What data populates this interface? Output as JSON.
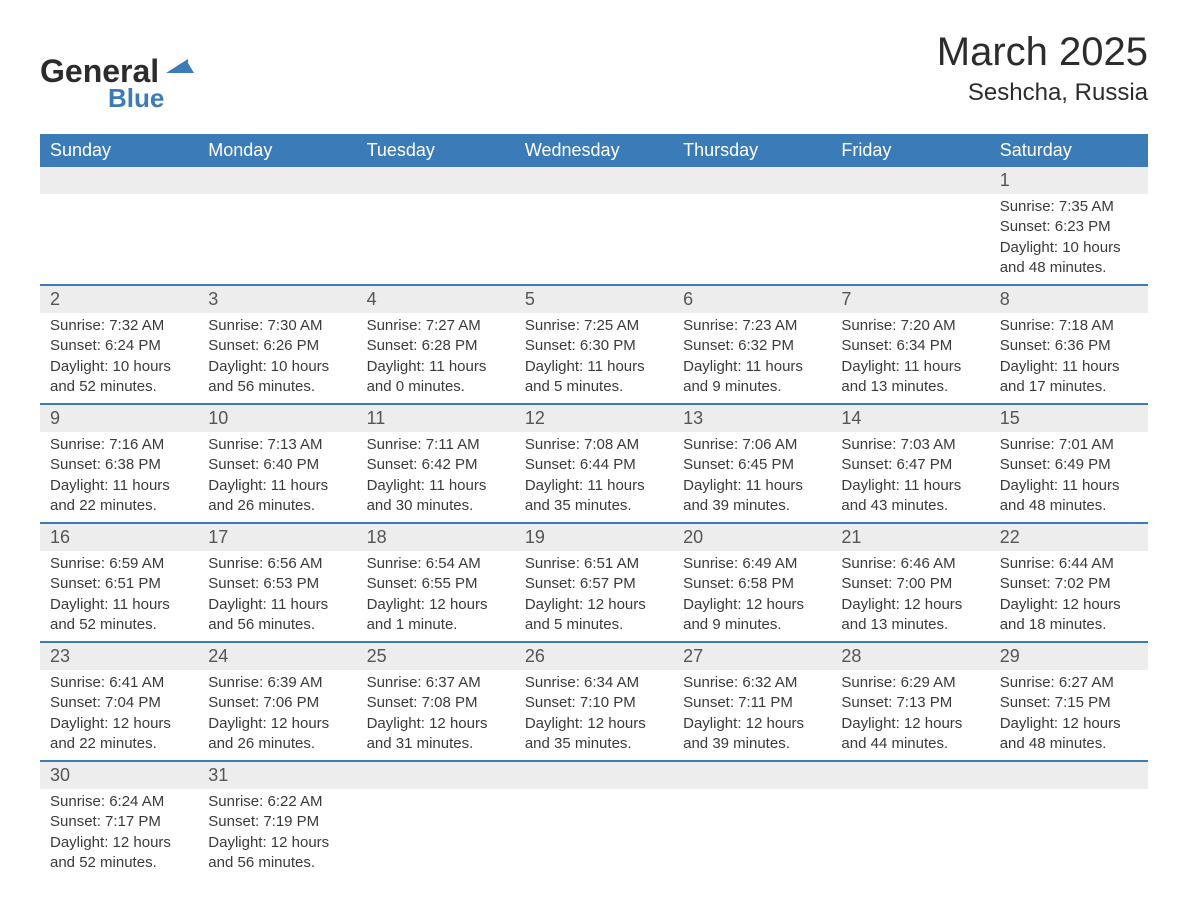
{
  "logo": {
    "text_general": "General",
    "text_blue": "Blue",
    "triangle_color": "#3b7cb8"
  },
  "title": {
    "month": "March 2025",
    "location": "Seshcha, Russia"
  },
  "colors": {
    "header_bg": "#3b7cb8",
    "header_text": "#ffffff",
    "daynum_bg": "#ededed",
    "daynum_text": "#555555",
    "content_text": "#3a3a3a",
    "border": "#3b7cb8",
    "background": "#ffffff"
  },
  "day_headers": [
    "Sunday",
    "Monday",
    "Tuesday",
    "Wednesday",
    "Thursday",
    "Friday",
    "Saturday"
  ],
  "weeks": [
    [
      null,
      null,
      null,
      null,
      null,
      null,
      {
        "num": "1",
        "sunrise": "Sunrise: 7:35 AM",
        "sunset": "Sunset: 6:23 PM",
        "daylight": "Daylight: 10 hours and 48 minutes."
      }
    ],
    [
      {
        "num": "2",
        "sunrise": "Sunrise: 7:32 AM",
        "sunset": "Sunset: 6:24 PM",
        "daylight": "Daylight: 10 hours and 52 minutes."
      },
      {
        "num": "3",
        "sunrise": "Sunrise: 7:30 AM",
        "sunset": "Sunset: 6:26 PM",
        "daylight": "Daylight: 10 hours and 56 minutes."
      },
      {
        "num": "4",
        "sunrise": "Sunrise: 7:27 AM",
        "sunset": "Sunset: 6:28 PM",
        "daylight": "Daylight: 11 hours and 0 minutes."
      },
      {
        "num": "5",
        "sunrise": "Sunrise: 7:25 AM",
        "sunset": "Sunset: 6:30 PM",
        "daylight": "Daylight: 11 hours and 5 minutes."
      },
      {
        "num": "6",
        "sunrise": "Sunrise: 7:23 AM",
        "sunset": "Sunset: 6:32 PM",
        "daylight": "Daylight: 11 hours and 9 minutes."
      },
      {
        "num": "7",
        "sunrise": "Sunrise: 7:20 AM",
        "sunset": "Sunset: 6:34 PM",
        "daylight": "Daylight: 11 hours and 13 minutes."
      },
      {
        "num": "8",
        "sunrise": "Sunrise: 7:18 AM",
        "sunset": "Sunset: 6:36 PM",
        "daylight": "Daylight: 11 hours and 17 minutes."
      }
    ],
    [
      {
        "num": "9",
        "sunrise": "Sunrise: 7:16 AM",
        "sunset": "Sunset: 6:38 PM",
        "daylight": "Daylight: 11 hours and 22 minutes."
      },
      {
        "num": "10",
        "sunrise": "Sunrise: 7:13 AM",
        "sunset": "Sunset: 6:40 PM",
        "daylight": "Daylight: 11 hours and 26 minutes."
      },
      {
        "num": "11",
        "sunrise": "Sunrise: 7:11 AM",
        "sunset": "Sunset: 6:42 PM",
        "daylight": "Daylight: 11 hours and 30 minutes."
      },
      {
        "num": "12",
        "sunrise": "Sunrise: 7:08 AM",
        "sunset": "Sunset: 6:44 PM",
        "daylight": "Daylight: 11 hours and 35 minutes."
      },
      {
        "num": "13",
        "sunrise": "Sunrise: 7:06 AM",
        "sunset": "Sunset: 6:45 PM",
        "daylight": "Daylight: 11 hours and 39 minutes."
      },
      {
        "num": "14",
        "sunrise": "Sunrise: 7:03 AM",
        "sunset": "Sunset: 6:47 PM",
        "daylight": "Daylight: 11 hours and 43 minutes."
      },
      {
        "num": "15",
        "sunrise": "Sunrise: 7:01 AM",
        "sunset": "Sunset: 6:49 PM",
        "daylight": "Daylight: 11 hours and 48 minutes."
      }
    ],
    [
      {
        "num": "16",
        "sunrise": "Sunrise: 6:59 AM",
        "sunset": "Sunset: 6:51 PM",
        "daylight": "Daylight: 11 hours and 52 minutes."
      },
      {
        "num": "17",
        "sunrise": "Sunrise: 6:56 AM",
        "sunset": "Sunset: 6:53 PM",
        "daylight": "Daylight: 11 hours and 56 minutes."
      },
      {
        "num": "18",
        "sunrise": "Sunrise: 6:54 AM",
        "sunset": "Sunset: 6:55 PM",
        "daylight": "Daylight: 12 hours and 1 minute."
      },
      {
        "num": "19",
        "sunrise": "Sunrise: 6:51 AM",
        "sunset": "Sunset: 6:57 PM",
        "daylight": "Daylight: 12 hours and 5 minutes."
      },
      {
        "num": "20",
        "sunrise": "Sunrise: 6:49 AM",
        "sunset": "Sunset: 6:58 PM",
        "daylight": "Daylight: 12 hours and 9 minutes."
      },
      {
        "num": "21",
        "sunrise": "Sunrise: 6:46 AM",
        "sunset": "Sunset: 7:00 PM",
        "daylight": "Daylight: 12 hours and 13 minutes."
      },
      {
        "num": "22",
        "sunrise": "Sunrise: 6:44 AM",
        "sunset": "Sunset: 7:02 PM",
        "daylight": "Daylight: 12 hours and 18 minutes."
      }
    ],
    [
      {
        "num": "23",
        "sunrise": "Sunrise: 6:41 AM",
        "sunset": "Sunset: 7:04 PM",
        "daylight": "Daylight: 12 hours and 22 minutes."
      },
      {
        "num": "24",
        "sunrise": "Sunrise: 6:39 AM",
        "sunset": "Sunset: 7:06 PM",
        "daylight": "Daylight: 12 hours and 26 minutes."
      },
      {
        "num": "25",
        "sunrise": "Sunrise: 6:37 AM",
        "sunset": "Sunset: 7:08 PM",
        "daylight": "Daylight: 12 hours and 31 minutes."
      },
      {
        "num": "26",
        "sunrise": "Sunrise: 6:34 AM",
        "sunset": "Sunset: 7:10 PM",
        "daylight": "Daylight: 12 hours and 35 minutes."
      },
      {
        "num": "27",
        "sunrise": "Sunrise: 6:32 AM",
        "sunset": "Sunset: 7:11 PM",
        "daylight": "Daylight: 12 hours and 39 minutes."
      },
      {
        "num": "28",
        "sunrise": "Sunrise: 6:29 AM",
        "sunset": "Sunset: 7:13 PM",
        "daylight": "Daylight: 12 hours and 44 minutes."
      },
      {
        "num": "29",
        "sunrise": "Sunrise: 6:27 AM",
        "sunset": "Sunset: 7:15 PM",
        "daylight": "Daylight: 12 hours and 48 minutes."
      }
    ],
    [
      {
        "num": "30",
        "sunrise": "Sunrise: 6:24 AM",
        "sunset": "Sunset: 7:17 PM",
        "daylight": "Daylight: 12 hours and 52 minutes."
      },
      {
        "num": "31",
        "sunrise": "Sunrise: 6:22 AM",
        "sunset": "Sunset: 7:19 PM",
        "daylight": "Daylight: 12 hours and 56 minutes."
      },
      null,
      null,
      null,
      null,
      null
    ]
  ]
}
